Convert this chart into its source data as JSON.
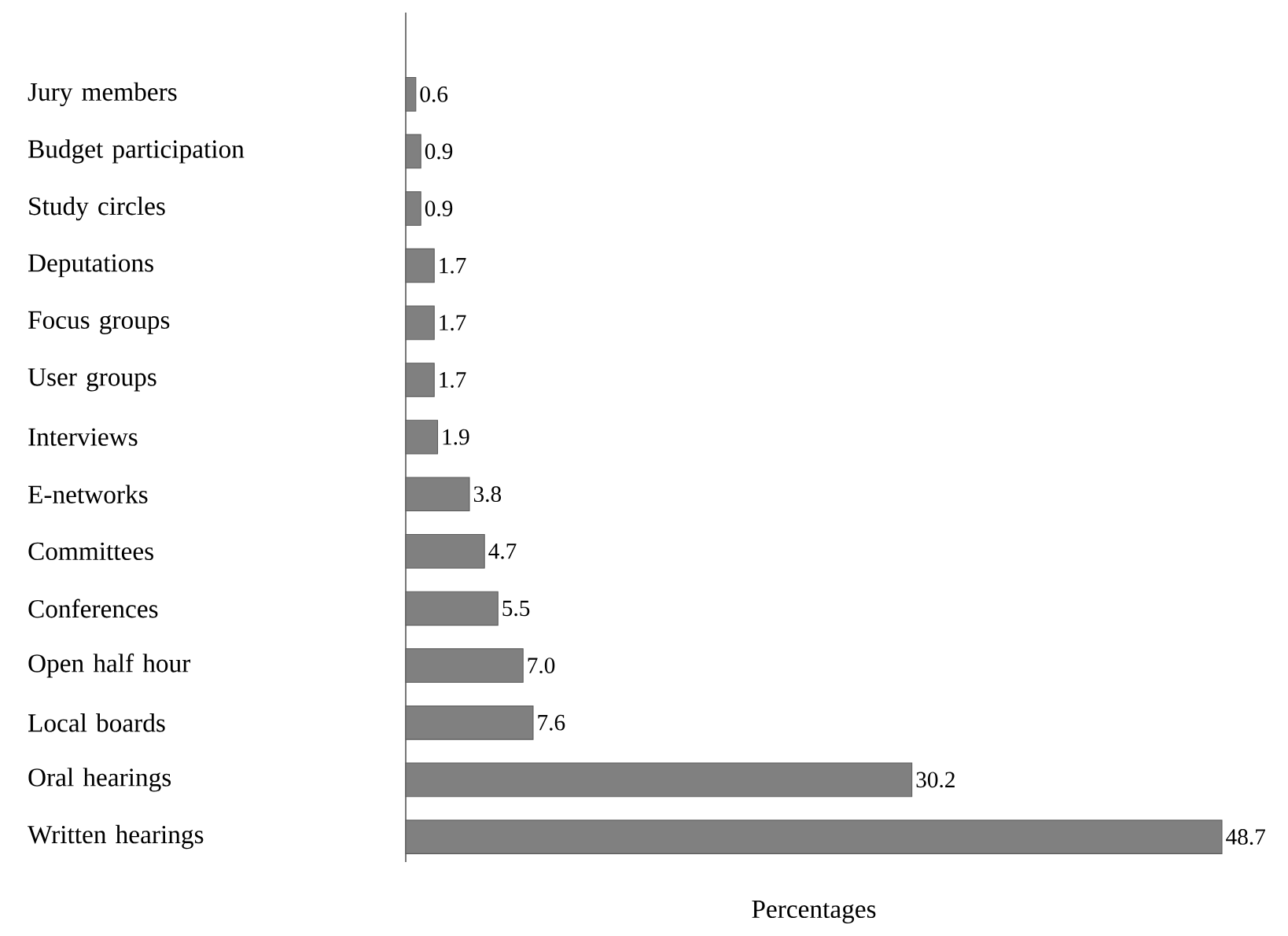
{
  "chart_data": {
    "type": "bar",
    "orientation": "horizontal",
    "xlabel": "Percentages",
    "categories": [
      "Jury members",
      "Budget participation",
      "Study circles",
      "Deputations",
      "Focus groups",
      "User groups",
      "Interviews",
      "E-networks",
      "Committees",
      "Conferences",
      "Open half hour",
      "Local boards",
      "Oral hearings",
      "Written hearings"
    ],
    "values": [
      0.6,
      0.9,
      0.9,
      1.7,
      1.7,
      1.7,
      1.9,
      3.8,
      4.7,
      5.5,
      7.0,
      7.6,
      30.2,
      48.7
    ],
    "value_labels": [
      "0.6",
      "0.9",
      "0.9",
      "1.7",
      "1.7",
      "1.7",
      "1.9",
      "3.8",
      "4.7",
      "5.5",
      "7.0",
      "7.6",
      "30.2",
      "48.7"
    ],
    "color": "#808080"
  }
}
